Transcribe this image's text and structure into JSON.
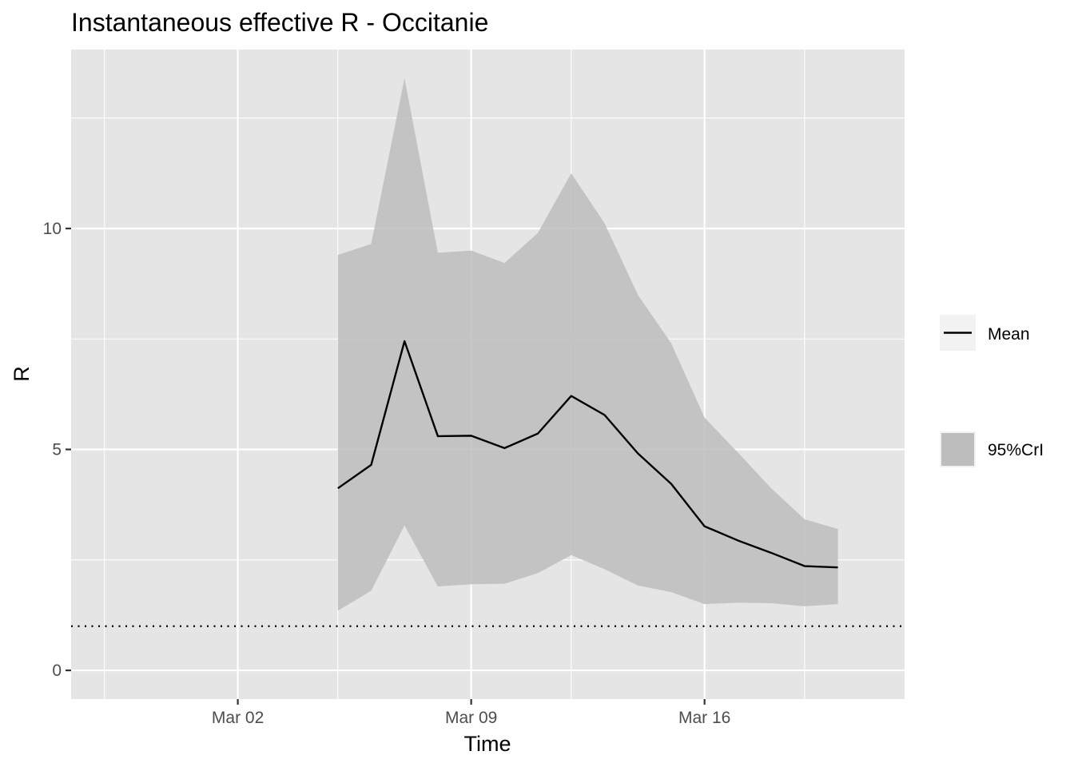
{
  "chart_data": {
    "type": "line",
    "title": "Instantaneous effective R -  Occitanie",
    "xlabel": "Time",
    "ylabel": "R",
    "x_axis_type": "date",
    "x_range": [
      "2020-02-26",
      "2020-03-22"
    ],
    "ylim": [
      -0.65,
      14.05
    ],
    "x_ticks": [
      {
        "date": "2020-03-02",
        "label": "Mar 02"
      },
      {
        "date": "2020-03-09",
        "label": "Mar 09"
      },
      {
        "date": "2020-03-16",
        "label": "Mar 16"
      }
    ],
    "x_minor_ticks": [
      "2020-02-27",
      "2020-03-05",
      "2020-03-12",
      "2020-03-19"
    ],
    "y_ticks": [
      0,
      5,
      10
    ],
    "y_minor_ticks": [
      2.5,
      7.5,
      12.5
    ],
    "grid": true,
    "background_color": "#e5e5e5",
    "grid_color": "#ffffff",
    "reference_line": {
      "y": 1,
      "style": "dotted"
    },
    "legend_position": "right",
    "series": [
      {
        "name": "Mean",
        "type": "line",
        "color": "#000000",
        "x": [
          "2020-03-05",
          "2020-03-06",
          "2020-03-07",
          "2020-03-08",
          "2020-03-09",
          "2020-03-10",
          "2020-03-11",
          "2020-03-12",
          "2020-03-13",
          "2020-03-14",
          "2020-03-15",
          "2020-03-16",
          "2020-03-17",
          "2020-03-18",
          "2020-03-19",
          "2020-03-20"
        ],
        "y": [
          4.12,
          4.65,
          7.45,
          5.3,
          5.31,
          5.03,
          5.36,
          6.21,
          5.78,
          4.91,
          4.22,
          3.26,
          2.94,
          2.66,
          2.36,
          2.33
        ]
      },
      {
        "name": "95%CrI",
        "type": "ribbon",
        "color": "#bdbdbd",
        "x": [
          "2020-03-05",
          "2020-03-06",
          "2020-03-07",
          "2020-03-08",
          "2020-03-09",
          "2020-03-10",
          "2020-03-11",
          "2020-03-12",
          "2020-03-13",
          "2020-03-14",
          "2020-03-15",
          "2020-03-16",
          "2020-03-17",
          "2020-03-18",
          "2020-03-19",
          "2020-03-20"
        ],
        "lower": [
          1.35,
          1.8,
          3.28,
          1.9,
          1.95,
          1.96,
          2.2,
          2.61,
          2.29,
          1.92,
          1.77,
          1.5,
          1.53,
          1.52,
          1.45,
          1.5
        ],
        "upper": [
          9.4,
          9.65,
          13.4,
          9.45,
          9.5,
          9.22,
          9.9,
          11.25,
          10.12,
          8.5,
          7.4,
          5.72,
          4.93,
          4.12,
          3.42,
          3.2
        ]
      }
    ]
  }
}
